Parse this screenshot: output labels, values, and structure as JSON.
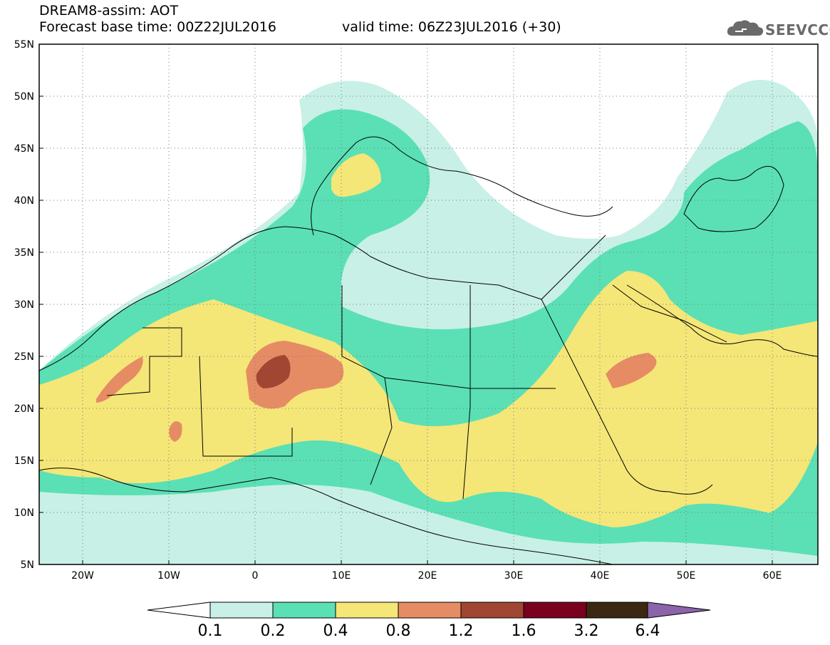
{
  "header": {
    "line1": "DREAM8-assim: AOT",
    "line2_left": "Forecast base time: 00Z22JUL2016",
    "line2_right": "valid time: 06Z23JUL2016 (+30)",
    "logo_text": "SEEVCCC",
    "logo_icon": "cloud-icon"
  },
  "map": {
    "lon_range": [
      -25,
      65
    ],
    "lat_range": [
      5,
      55
    ],
    "lon_ticks": [
      "20W",
      "10W",
      "0",
      "10E",
      "20E",
      "30E",
      "40E",
      "50E",
      "60E"
    ],
    "lat_ticks": [
      "55N",
      "50N",
      "45N",
      "40N",
      "35N",
      "30N",
      "25N",
      "20N",
      "15N",
      "10N",
      "5N"
    ],
    "grid": "dotted"
  },
  "colorbar": {
    "labels": [
      "0.1",
      "0.2",
      "0.4",
      "0.8",
      "1.2",
      "1.6",
      "3.2",
      "6.4"
    ],
    "colors": [
      "#c8f0e6",
      "#5ae0b4",
      "#f5e678",
      "#e68c64",
      "#a04632",
      "#7a0020",
      "#3c2812",
      "#8c64aa"
    ]
  }
}
